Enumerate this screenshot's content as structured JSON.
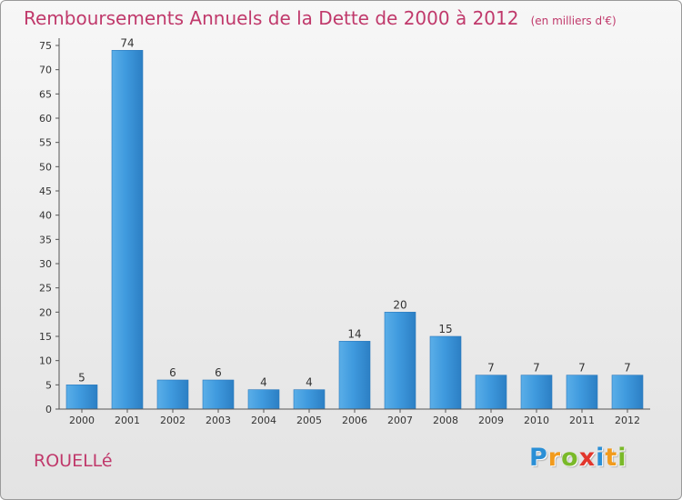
{
  "chart_data": {
    "type": "bar",
    "title": "Remboursements Annuels de la Dette de 2000 à 2012",
    "unit_note": "(en milliers d'€)",
    "xlabel": "",
    "ylabel": "",
    "categories": [
      "2000",
      "2001",
      "2002",
      "2003",
      "2004",
      "2005",
      "2006",
      "2007",
      "2008",
      "2009",
      "2010",
      "2011",
      "2012"
    ],
    "values": [
      5,
      74,
      6,
      6,
      4,
      4,
      14,
      20,
      15,
      7,
      7,
      7,
      7
    ],
    "ylim": [
      0,
      75
    ],
    "yticks": [
      0,
      5,
      10,
      15,
      20,
      25,
      30,
      35,
      40,
      45,
      50,
      55,
      60,
      65,
      70,
      75
    ],
    "grid": false,
    "bar_color": "#3d97dd",
    "title_color": "#c0396b"
  },
  "place_name": "ROUELLé",
  "logo": {
    "letters": [
      {
        "ch": "P",
        "color": "#2a8fd6"
      },
      {
        "ch": "r",
        "color": "#f29b1d"
      },
      {
        "ch": "o",
        "color": "#7ab929"
      },
      {
        "ch": "x",
        "color": "#e2362c"
      },
      {
        "ch": "i",
        "color": "#2a8fd6"
      },
      {
        "ch": "t",
        "color": "#f29b1d"
      },
      {
        "ch": "i",
        "color": "#7ab929"
      }
    ]
  }
}
